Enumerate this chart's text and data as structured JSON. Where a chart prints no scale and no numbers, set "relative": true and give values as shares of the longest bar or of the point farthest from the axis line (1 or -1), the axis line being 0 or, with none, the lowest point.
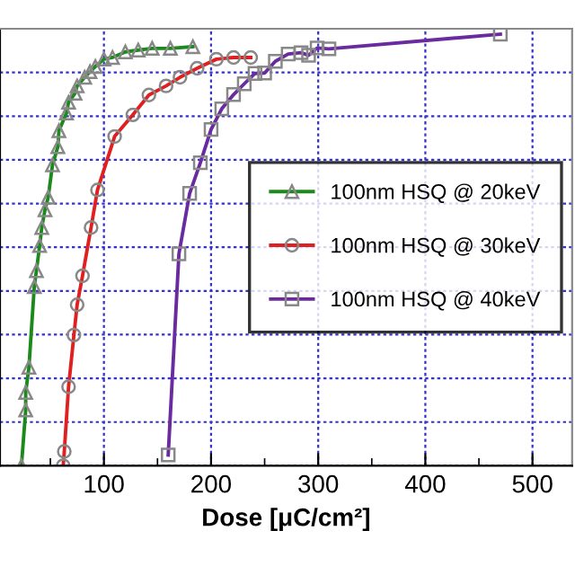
{
  "chart_data": {
    "type": "line",
    "relative": true,
    "xlabel": "Dose [μC/cm²]",
    "xlim": [
      3,
      537
    ],
    "xticks": [
      {
        "value": 50,
        "label": null
      },
      100,
      {
        "value": 150,
        "label": null
      },
      200,
      {
        "value": 250,
        "label": null
      },
      300,
      {
        "value": 350,
        "label": null
      },
      400,
      {
        "value": 450,
        "label": null
      },
      500
    ],
    "tick_labels": "x",
    "grid": true,
    "legend": "center right",
    "series": [
      {
        "name": "100nm HSQ @ 20keV",
        "color": "#1a8a1a",
        "marker": "triangle",
        "x": [
          23,
          27,
          27,
          30,
          35,
          37,
          40,
          42,
          45,
          48,
          52,
          57,
          58,
          65,
          67,
          73,
          75,
          82,
          87,
          92,
          100,
          108,
          120,
          132,
          145,
          162,
          183
        ],
        "values": [
          0,
          0.129,
          0.17,
          0.228,
          0.415,
          0.452,
          0.51,
          0.552,
          0.593,
          0.622,
          0.697,
          0.739,
          0.776,
          0.817,
          0.842,
          0.863,
          0.88,
          0.9,
          0.913,
          0.925,
          0.942,
          0.946,
          0.959,
          0.963,
          0.967,
          0.967,
          0.971
        ]
      },
      {
        "name": "100nm HSQ @ 30keV",
        "color": "#e02020",
        "marker": "circle",
        "x": [
          62,
          63,
          67,
          72,
          75,
          80,
          88,
          94,
          110,
          127,
          142,
          158,
          171,
          187,
          205,
          221,
          237
        ],
        "values": [
          0,
          0.033,
          0.183,
          0.303,
          0.373,
          0.44,
          0.552,
          0.639,
          0.763,
          0.813,
          0.859,
          0.88,
          0.9,
          0.921,
          0.942,
          0.946,
          0.946
        ]
      },
      {
        "name": "100nm HSQ @ 40keV",
        "color": "#6a2aa0",
        "marker": "square",
        "x": [
          160,
          170,
          180,
          190,
          200,
          210,
          221,
          231,
          241,
          250,
          260,
          272,
          284,
          291,
          299,
          310,
          470
        ],
        "values": [
          0.025,
          0.491,
          0.631,
          0.702,
          0.779,
          0.827,
          0.86,
          0.885,
          0.909,
          0.91,
          0.937,
          0.954,
          0.957,
          0.951,
          0.968,
          0.966,
          1
        ]
      }
    ]
  }
}
